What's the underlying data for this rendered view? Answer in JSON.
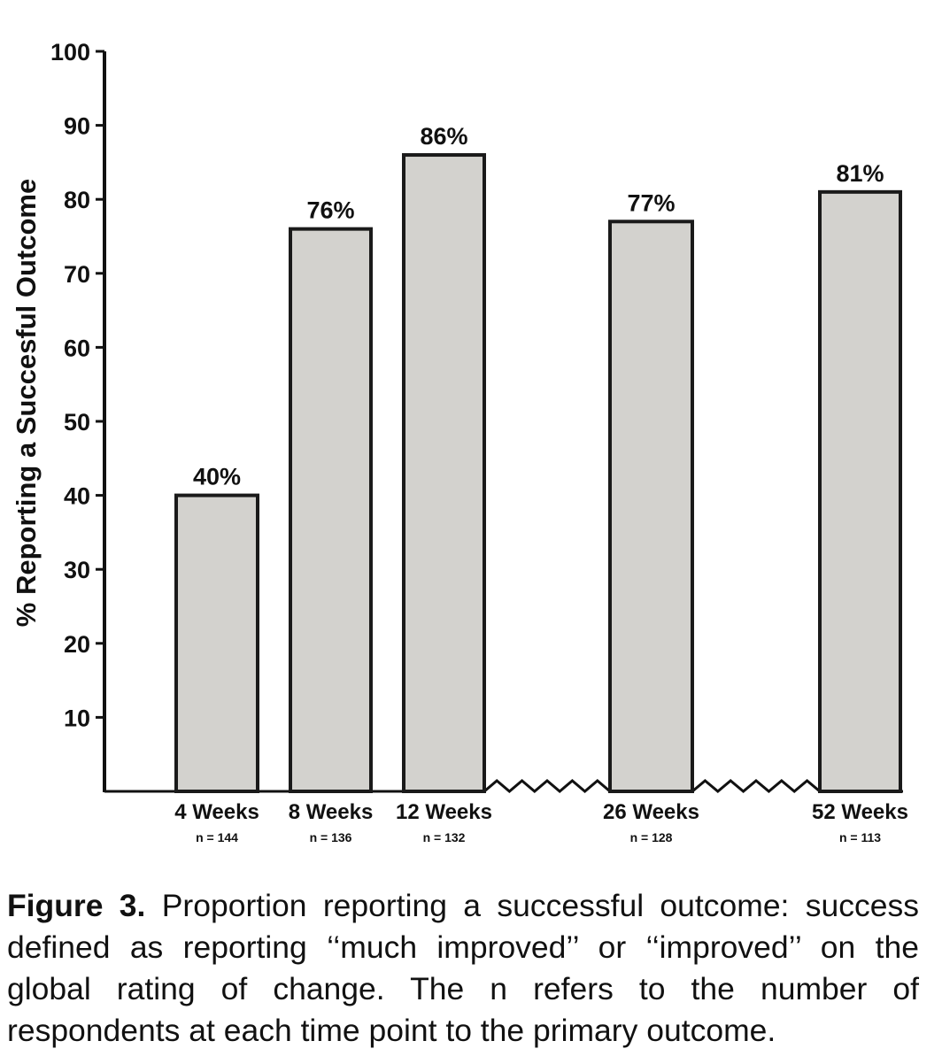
{
  "chart_data": {
    "type": "bar",
    "categories": [
      "4 Weeks",
      "8 Weeks",
      "12 Weeks",
      "26 Weeks",
      "52 Weeks"
    ],
    "sample_sizes": [
      "n = 144",
      "n = 136",
      "n = 132",
      "n = 128",
      "n = 113"
    ],
    "values": [
      40,
      76,
      86,
      77,
      81
    ],
    "value_labels": [
      "40%",
      "76%",
      "86%",
      "77%",
      "81%"
    ],
    "title": "",
    "xlabel": "",
    "ylabel": "% Reporting a Succesful Outcome",
    "ylim": [
      0,
      100
    ],
    "yticks": [
      10,
      20,
      30,
      40,
      50,
      60,
      70,
      80,
      90,
      100
    ],
    "axis_breaks": [
      "between 12 Weeks and 26 Weeks",
      "between 26 Weeks and 52 Weeks"
    ],
    "grid": false,
    "bar_color": "#d3d2ce"
  },
  "caption": {
    "label": "Figure 3.",
    "text": "Proportion reporting a successful outcome: success defined as reporting ‘‘much improved’’ or ‘‘improved’’ on the global rating of change. The n refers to the number of respondents at each time point to the primary outcome."
  }
}
